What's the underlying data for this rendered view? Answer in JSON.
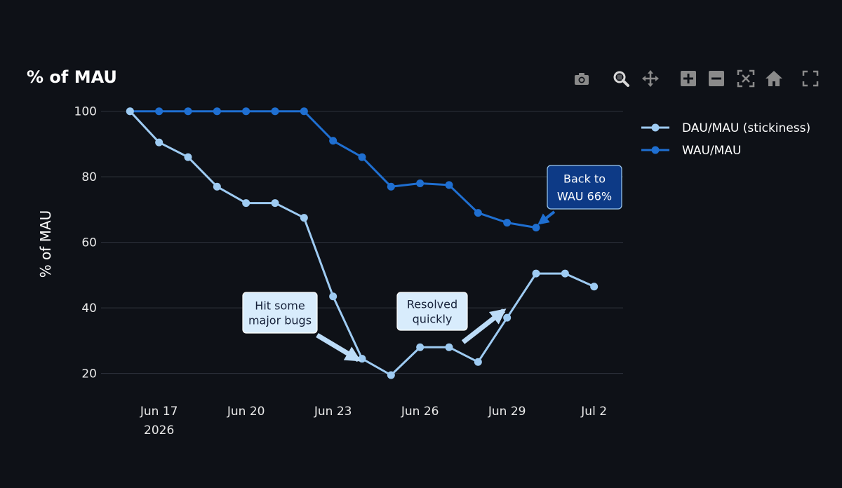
{
  "header": {
    "title": "% of MAU"
  },
  "toolbar": {
    "buttons": [
      {
        "name": "camera-icon",
        "label": "Download plot as png"
      },
      {
        "name": "zoom-icon",
        "label": "Zoom"
      },
      {
        "name": "pan-icon",
        "label": "Pan"
      },
      {
        "name": "zoom-in-icon",
        "label": "Zoom in"
      },
      {
        "name": "zoom-out-icon",
        "label": "Zoom out"
      },
      {
        "name": "autoscale-icon",
        "label": "Autoscale"
      },
      {
        "name": "home-icon",
        "label": "Reset axes"
      },
      {
        "name": "fullscreen-icon",
        "label": "Fullscreen"
      }
    ]
  },
  "chart_data": {
    "type": "line",
    "title": "% of MAU",
    "xlabel": "",
    "ylabel": "% of MAU",
    "x": [
      "2026-06-16",
      "2026-06-17",
      "2026-06-18",
      "2026-06-19",
      "2026-06-20",
      "2026-06-21",
      "2026-06-22",
      "2026-06-23",
      "2026-06-24",
      "2026-06-25",
      "2026-06-26",
      "2026-06-27",
      "2026-06-28",
      "2026-06-29",
      "2026-06-30",
      "2026-07-01",
      "2026-07-02"
    ],
    "xlim": [
      "2026-06-15",
      "2026-07-03"
    ],
    "ylim": [
      15,
      104
    ],
    "x_ticks": [
      {
        "date": "2026-06-17",
        "label": "Jun 17",
        "sublabel": "2026"
      },
      {
        "date": "2026-06-20",
        "label": "Jun 20"
      },
      {
        "date": "2026-06-23",
        "label": "Jun 23"
      },
      {
        "date": "2026-06-26",
        "label": "Jun 26"
      },
      {
        "date": "2026-06-29",
        "label": "Jun 29"
      },
      {
        "date": "2026-07-02",
        "label": "Jul 2"
      }
    ],
    "y_ticks": [
      20,
      40,
      60,
      80,
      100
    ],
    "grid": true,
    "legend_position": "top-right",
    "series": [
      {
        "name": "DAU/MAU (stickiness)",
        "color": "#9ecbf2",
        "values": [
          100,
          90.5,
          86,
          77,
          72,
          72,
          67.5,
          43.5,
          24.5,
          19.5,
          28,
          28,
          23.5,
          37,
          50.5,
          50.5,
          46.5
        ]
      },
      {
        "name": "WAU/MAU",
        "color": "#1f6fd1",
        "values": [
          100,
          100,
          100,
          100,
          100,
          100,
          100,
          91,
          86,
          77,
          78,
          77.5,
          69,
          66,
          64.5,
          null,
          null
        ]
      }
    ],
    "annotations": [
      {
        "text_lines": [
          "Hit some",
          "major bugs"
        ],
        "arrow_to": {
          "x": "2026-06-24",
          "y": 23.5
        },
        "style": "light"
      },
      {
        "text_lines": [
          "Resolved",
          "quickly"
        ],
        "arrow_to": {
          "x": "2026-06-29",
          "y": 40
        },
        "style": "light"
      },
      {
        "text_lines": [
          "Back to",
          "WAU 66%"
        ],
        "arrow_to": {
          "x": "2026-06-30",
          "y": 65
        },
        "style": "dark"
      }
    ]
  }
}
